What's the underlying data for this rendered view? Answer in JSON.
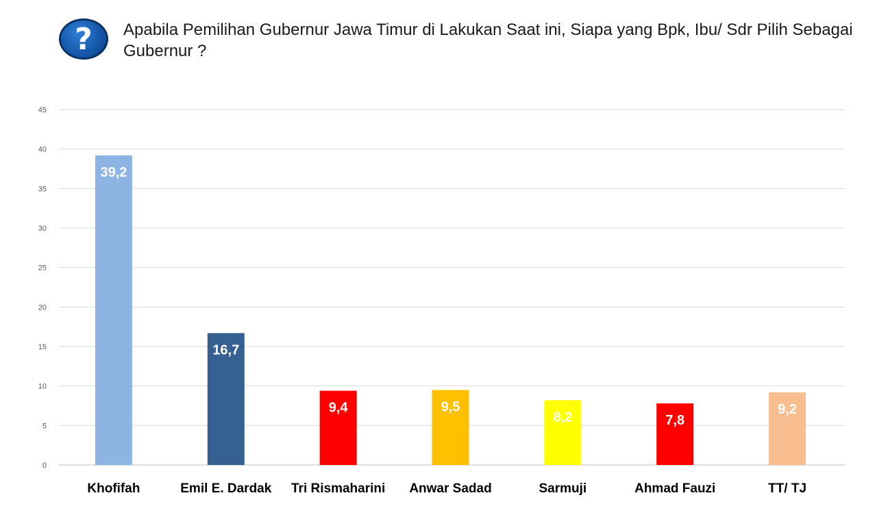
{
  "header": {
    "icon": "question-mark-icon",
    "icon_glyph": "?",
    "title": "Apabila Pemilihan Gubernur Jawa Timur di Lakukan Saat ini, Siapa yang Bpk, Ibu/ Sdr Pilih Sebagai Gubernur ?"
  },
  "chart_data": {
    "type": "bar",
    "title": "Apabila Pemilihan Gubernur Jawa Timur di Lakukan Saat ini, Siapa yang Bpk, Ibu/ Sdr Pilih Sebagai Gubernur ?",
    "xlabel": "",
    "ylabel": "",
    "ylim": [
      0,
      45
    ],
    "yticks": [
      0,
      5,
      10,
      15,
      20,
      25,
      30,
      35,
      40,
      45
    ],
    "grid": true,
    "legend": "none",
    "categories": [
      "Khofifah",
      "Emil E. Dardak",
      "Tri Rismaharini",
      "Anwar Sadad",
      "Sarmuji",
      "Ahmad Fauzi",
      "TT/ TJ"
    ],
    "values": [
      39.2,
      16.7,
      9.4,
      9.5,
      8.2,
      7.8,
      9.2
    ],
    "data_labels": [
      "39,2",
      "16,7",
      "9,4",
      "9,5",
      "8,2",
      "7,8",
      "9,2"
    ],
    "colors": [
      "#8eb4e3",
      "#376092",
      "#ff0000",
      "#ffc000",
      "#ffff00",
      "#ff0000",
      "#f9be8f"
    ]
  }
}
